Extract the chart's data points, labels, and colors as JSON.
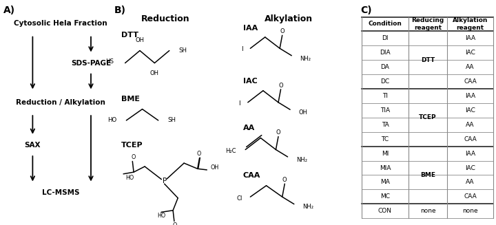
{
  "panel_A_label": "A)",
  "panel_B_label": "B)",
  "panel_C_label": "C)",
  "flowchart_steps": [
    "Cytosolic Hela Fraction",
    "SDS-PAGE",
    "Reduction / Alkylation",
    "SAX",
    "LC-MSMS"
  ],
  "reduction_reagents": [
    "DTT",
    "BME",
    "TCEP"
  ],
  "alkylation_reagents": [
    "IAA",
    "IAC",
    "AA",
    "CAA"
  ],
  "table_conditions": [
    "DI",
    "DIA",
    "DA",
    "DC",
    "TI",
    "TIA",
    "TA",
    "TC",
    "MI",
    "MIA",
    "MA",
    "MC",
    "CON"
  ],
  "table_alkylation": [
    "IAA",
    "IAC",
    "AA",
    "CAA",
    "IAA",
    "IAC",
    "AA",
    "CAA",
    "IAA",
    "IAC",
    "AA",
    "CAA",
    "none"
  ],
  "table_reducing_spans": [
    [
      "DTT",
      0,
      3
    ],
    [
      "TCEP",
      4,
      7
    ],
    [
      "BME",
      8,
      11
    ],
    [
      "none",
      12,
      12
    ]
  ],
  "bg_color": "#ffffff",
  "grid_color": "#888888",
  "thick_line_rows": [
    0,
    1,
    5,
    9,
    13
  ]
}
